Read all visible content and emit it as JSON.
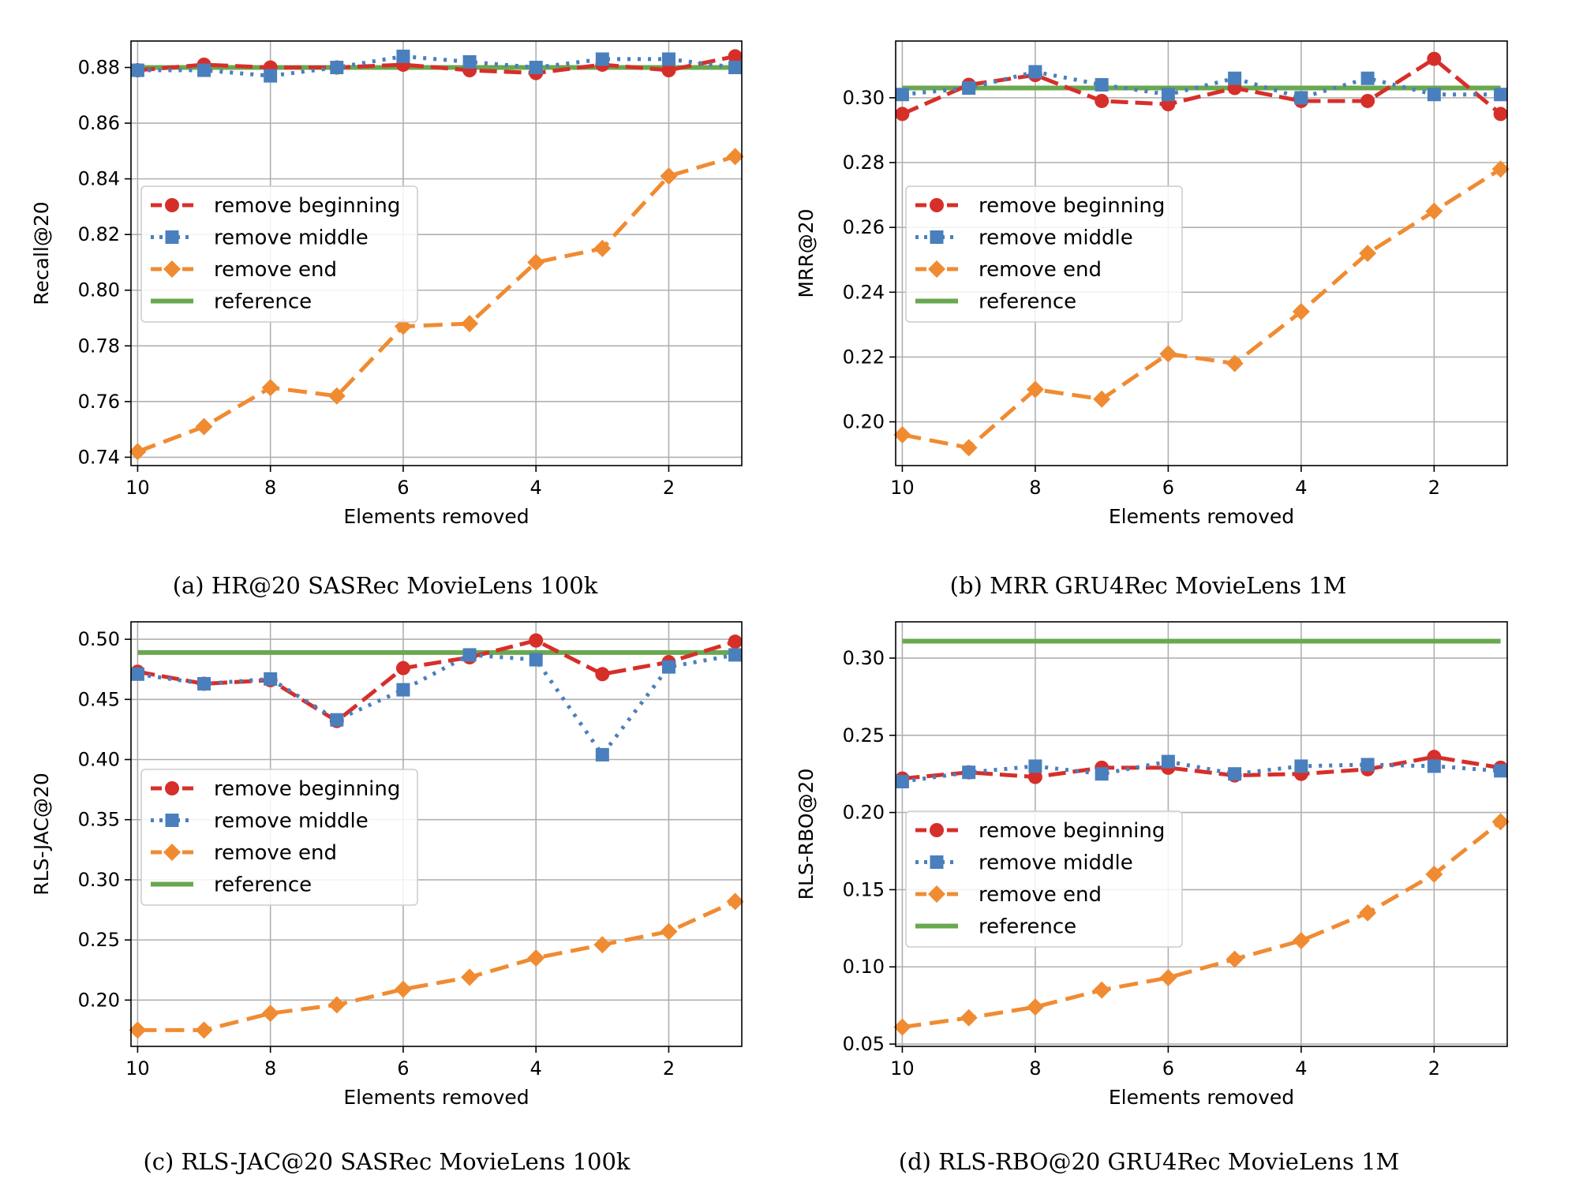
{
  "chart_data": [
    {
      "type": "line",
      "caption": "(a) HR@20 SASRec MovieLens 100k",
      "xlabel": "Elements removed",
      "ylabel": "Recall@20",
      "x": [
        10,
        9,
        8,
        7,
        6,
        5,
        4,
        3,
        2,
        1
      ],
      "xlim": [
        10.1,
        0.9
      ],
      "xticks": [
        10,
        8,
        6,
        4,
        2
      ],
      "ylim": [
        0.737,
        0.8895
      ],
      "yticks": [
        0.74,
        0.76,
        0.78,
        0.8,
        0.82,
        0.84,
        0.86,
        0.88
      ],
      "yticklabels": [
        "0.74",
        "0.76",
        "0.78",
        "0.80",
        "0.82",
        "0.84",
        "0.86",
        "0.88"
      ],
      "grid": true,
      "legend_position": "center-left",
      "series": [
        {
          "name": "remove beginning",
          "values": [
            0.879,
            0.881,
            0.88,
            0.88,
            0.881,
            0.879,
            0.878,
            0.881,
            0.879,
            0.884
          ]
        },
        {
          "name": "remove middle",
          "values": [
            0.879,
            0.879,
            0.877,
            0.88,
            0.884,
            0.882,
            0.88,
            0.883,
            0.883,
            0.88
          ]
        },
        {
          "name": "remove end",
          "values": [
            0.742,
            0.751,
            0.765,
            0.762,
            0.787,
            0.788,
            0.81,
            0.815,
            0.841,
            0.848
          ]
        },
        {
          "name": "reference",
          "values": [
            0.88,
            0.88,
            0.88,
            0.88,
            0.88,
            0.88,
            0.88,
            0.88,
            0.88,
            0.88
          ]
        }
      ]
    },
    {
      "type": "line",
      "caption": "(b) MRR GRU4Rec MovieLens 1M",
      "xlabel": "Elements removed",
      "ylabel": "MRR@20",
      "x": [
        10,
        9,
        8,
        7,
        6,
        5,
        4,
        3,
        2,
        1
      ],
      "xlim": [
        10.1,
        0.9
      ],
      "xticks": [
        10,
        8,
        6,
        4,
        2
      ],
      "ylim": [
        0.1865,
        0.3175
      ],
      "yticks": [
        0.2,
        0.22,
        0.24,
        0.26,
        0.28,
        0.3
      ],
      "yticklabels": [
        "0.20",
        "0.22",
        "0.24",
        "0.26",
        "0.28",
        "0.30"
      ],
      "grid": true,
      "legend_position": "center-left",
      "series": [
        {
          "name": "remove beginning",
          "values": [
            0.295,
            0.304,
            0.307,
            0.299,
            0.298,
            0.303,
            0.299,
            0.299,
            0.312,
            0.295
          ]
        },
        {
          "name": "remove middle",
          "values": [
            0.301,
            0.303,
            0.308,
            0.304,
            0.301,
            0.306,
            0.3,
            0.306,
            0.301,
            0.301
          ]
        },
        {
          "name": "remove end",
          "values": [
            0.196,
            0.192,
            0.21,
            0.207,
            0.221,
            0.218,
            0.234,
            0.252,
            0.265,
            0.278
          ]
        },
        {
          "name": "reference",
          "values": [
            0.303,
            0.303,
            0.303,
            0.303,
            0.303,
            0.303,
            0.303,
            0.303,
            0.303,
            0.303
          ]
        }
      ]
    },
    {
      "type": "line",
      "caption": "(c) RLS-JAC@20 SASRec MovieLens 100k",
      "xlabel": "Elements removed",
      "ylabel": "RLS-JAC@20",
      "x": [
        10,
        9,
        8,
        7,
        6,
        5,
        4,
        3,
        2,
        1
      ],
      "xlim": [
        10.1,
        0.9
      ],
      "xticks": [
        10,
        8,
        6,
        4,
        2
      ],
      "ylim": [
        0.1615,
        0.5145
      ],
      "yticks": [
        0.2,
        0.25,
        0.3,
        0.35,
        0.4,
        0.45,
        0.5
      ],
      "yticklabels": [
        "0.20",
        "0.25",
        "0.30",
        "0.35",
        "0.40",
        "0.45",
        "0.50"
      ],
      "grid": true,
      "legend_position": "center-left",
      "series": [
        {
          "name": "remove beginning",
          "values": [
            0.473,
            0.463,
            0.466,
            0.432,
            0.476,
            0.485,
            0.499,
            0.471,
            0.481,
            0.498
          ]
        },
        {
          "name": "remove middle",
          "values": [
            0.471,
            0.463,
            0.467,
            0.433,
            0.458,
            0.487,
            0.483,
            0.404,
            0.477,
            0.487
          ]
        },
        {
          "name": "remove end",
          "values": [
            0.175,
            0.175,
            0.189,
            0.196,
            0.209,
            0.219,
            0.235,
            0.246,
            0.257,
            0.282
          ]
        },
        {
          "name": "reference",
          "values": [
            0.489,
            0.489,
            0.489,
            0.489,
            0.489,
            0.489,
            0.489,
            0.489,
            0.489,
            0.489
          ]
        }
      ]
    },
    {
      "type": "line",
      "caption": "(d) RLS-RBO@20 GRU4Rec MovieLens 1M",
      "xlabel": "Elements removed",
      "ylabel": "RLS-RBO@20",
      "x": [
        10,
        9,
        8,
        7,
        6,
        5,
        4,
        3,
        2,
        1
      ],
      "xlim": [
        10.1,
        0.9
      ],
      "xticks": [
        10,
        8,
        6,
        4,
        2
      ],
      "ylim": [
        0.0485,
        0.3235
      ],
      "yticks": [
        0.05,
        0.1,
        0.15,
        0.2,
        0.25,
        0.3
      ],
      "yticklabels": [
        "0.05",
        "0.10",
        "0.15",
        "0.20",
        "0.25",
        "0.30"
      ],
      "grid": true,
      "legend_position": "center-left",
      "series": [
        {
          "name": "remove beginning",
          "values": [
            0.222,
            0.226,
            0.223,
            0.229,
            0.229,
            0.224,
            0.225,
            0.228,
            0.236,
            0.229
          ]
        },
        {
          "name": "remove middle",
          "values": [
            0.22,
            0.226,
            0.23,
            0.225,
            0.233,
            0.225,
            0.23,
            0.231,
            0.23,
            0.227
          ]
        },
        {
          "name": "remove end",
          "values": [
            0.061,
            0.067,
            0.074,
            0.085,
            0.093,
            0.105,
            0.117,
            0.135,
            0.16,
            0.194
          ]
        },
        {
          "name": "reference",
          "values": [
            0.311,
            0.311,
            0.311,
            0.311,
            0.311,
            0.311,
            0.311,
            0.311,
            0.311,
            0.311
          ]
        }
      ]
    }
  ],
  "colors": {
    "remove beginning": "#d62f2a",
    "remove middle": "#4a7fbd",
    "remove end": "#f08b32",
    "reference": "#69a84f",
    "grid": "#b0b0b0",
    "axes": "#000000"
  }
}
